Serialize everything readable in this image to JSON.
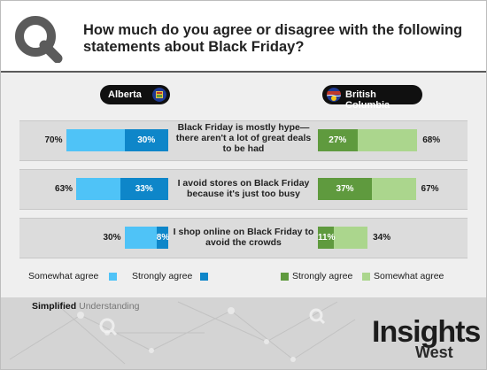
{
  "title": "How much do you agree or disagree with the following statements about Black Friday?",
  "regions": {
    "left": "Alberta",
    "right": "British Columbia"
  },
  "colors": {
    "ab_somewhat": "#4fc3f7",
    "ab_strongly": "#0e86c9",
    "bc_strongly": "#5f9a3e",
    "bc_somewhat": "#abd68d"
  },
  "chart_data": {
    "type": "bar",
    "categories": [
      "Black Friday is mostly hype—there aren't a lot of great deals to be had",
      "I avoid stores on Black Friday because it's just too busy",
      "I shop online on Black Friday to avoid the crowds"
    ],
    "category_lines": [
      [
        "Black Friday is mostly hype—",
        "there aren't a lot of great deals",
        "to be had"
      ],
      [
        "I avoid stores on Black Friday",
        "because it's just too busy"
      ],
      [
        "I shop online on Black Friday to",
        "avoid the crowds"
      ]
    ],
    "alberta": {
      "agree_total": [
        70,
        63,
        30
      ],
      "strongly_agree": [
        30,
        33,
        8
      ],
      "total_labels": [
        "70%",
        "63%",
        "30%"
      ],
      "strongly_labels": [
        "30%",
        "33%",
        "8%"
      ]
    },
    "british_columbia": {
      "agree_total": [
        68,
        67,
        34
      ],
      "strongly_agree": [
        27,
        37,
        11
      ],
      "total_labels": [
        "68%",
        "67%",
        "34%"
      ],
      "strongly_labels": [
        "27%",
        "37%",
        "11%"
      ]
    },
    "legend": {
      "ab_somewhat": "Somewhat agree",
      "ab_strongly": "Strongly agree",
      "bc_strongly": "Strongly agree",
      "bc_somewhat": "Somewhat agree"
    }
  },
  "footer": {
    "tag_bold": "Simplified",
    "tag_light": "Understanding",
    "brand_main": "Insights",
    "brand_sub": "West"
  }
}
